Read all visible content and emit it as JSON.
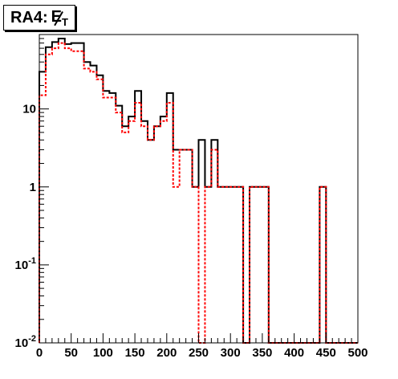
{
  "title": {
    "prefix": "RA4: ",
    "symbol": "E",
    "subscript": "T"
  },
  "colors": {
    "series_black": "#000000",
    "series_red": "#ff0000",
    "frame": "#000000",
    "background": "#ffffff"
  },
  "chart_data": {
    "type": "histogram",
    "x_scale": "linear",
    "y_scale": "log",
    "xlim": [
      0,
      500
    ],
    "ylim": [
      0.01,
      90
    ],
    "grid": false,
    "legend": "none",
    "bin_width": 10,
    "x_ticks": [
      "0",
      "50",
      "100",
      "150",
      "200",
      "250",
      "300",
      "350",
      "400",
      "450",
      "500"
    ],
    "y_ticks": [
      {
        "value": 0.01,
        "base": "10",
        "exp": "-2"
      },
      {
        "value": 0.1,
        "base": "10",
        "exp": "-1"
      },
      {
        "value": 1,
        "base": "1",
        "exp": ""
      },
      {
        "value": 10,
        "base": "10",
        "exp": ""
      }
    ],
    "bin_edges": [
      0,
      10,
      20,
      30,
      40,
      50,
      60,
      70,
      80,
      90,
      100,
      110,
      120,
      130,
      140,
      150,
      160,
      170,
      180,
      190,
      200,
      210,
      220,
      230,
      240,
      250,
      260,
      270,
      280,
      290,
      300,
      310,
      320,
      330,
      340,
      350,
      360,
      370,
      380,
      390,
      400,
      410,
      420,
      430,
      440,
      450,
      460,
      470,
      480,
      490,
      500
    ],
    "series": [
      {
        "style": "solid",
        "color": "#000000",
        "values": [
          30,
          62,
          72,
          80,
          68,
          70,
          70,
          40,
          36,
          27,
          17,
          16,
          11,
          6,
          8,
          17,
          7,
          4,
          6,
          8,
          16,
          3,
          3,
          3,
          1,
          4,
          1,
          4,
          1,
          1,
          1,
          1,
          0,
          1,
          1,
          1,
          0,
          0,
          0,
          0,
          0,
          0,
          0,
          0,
          1,
          0,
          0,
          0,
          0,
          0
        ]
      },
      {
        "style": "dashed",
        "color": "#ff0000",
        "values": [
          15,
          50,
          60,
          70,
          60,
          55,
          55,
          33,
          30,
          24,
          14,
          14,
          9,
          5,
          7,
          12,
          6,
          4,
          6,
          7,
          12,
          1,
          3,
          3,
          1,
          0,
          1,
          3,
          1,
          1,
          1,
          1,
          0,
          1,
          1,
          1,
          0,
          0,
          0,
          0,
          0,
          0,
          0,
          0,
          1,
          0,
          0,
          0,
          0,
          0
        ]
      }
    ]
  }
}
